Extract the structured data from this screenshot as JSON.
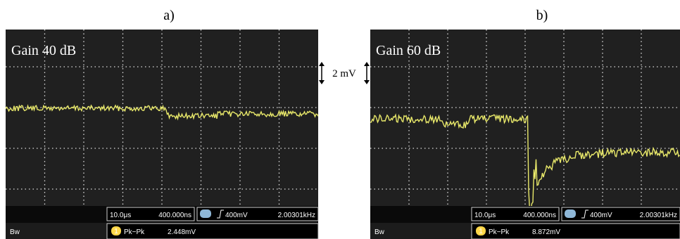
{
  "figure": {
    "scale": "2 mV",
    "panels": [
      {
        "label": "a)",
        "gain": "Gain 40 dB",
        "timebase": "10.0μs",
        "delay": "400.000ns",
        "trigger": "400mV",
        "frequency": "2.00301kHz",
        "bandwidth": "Bw",
        "channel": "1",
        "measurement": "Pk−Pk",
        "measurement_value": "2.448mV"
      },
      {
        "label": "b)",
        "gain": "Gain 60 dB",
        "timebase": "10.0μs",
        "delay": "400.000ns",
        "trigger": "400mV",
        "frequency": "2.00301kHz",
        "bandwidth": "Bw",
        "channel": "1",
        "measurement": "Pk−Pk",
        "measurement_value": "8.872mV"
      }
    ]
  }
}
